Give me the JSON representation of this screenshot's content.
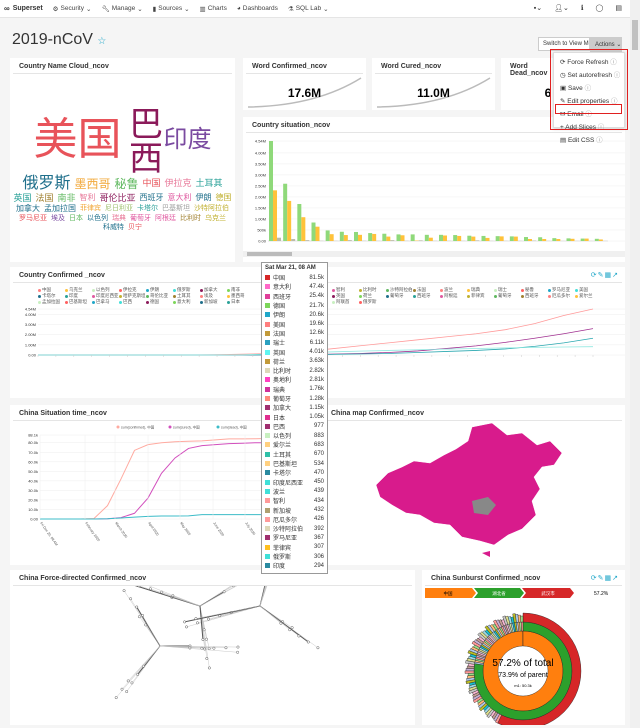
{
  "nav": {
    "brand": "Superset",
    "items": [
      {
        "label": "Security",
        "icon": "cogs-icon"
      },
      {
        "label": "Manage",
        "icon": "wrench-icon"
      },
      {
        "label": "Sources",
        "icon": "database-icon"
      },
      {
        "label": "Charts",
        "icon": "bar-chart-icon"
      },
      {
        "label": "Dashboards",
        "icon": "dashboard-icon"
      },
      {
        "label": "SQL Lab",
        "icon": "flask-icon"
      }
    ]
  },
  "dashboard": {
    "title": "2019-nCoV",
    "switch_label": "Switch to View Mode",
    "actions_label": "Actions"
  },
  "actions_menu": [
    {
      "label": "Force Refresh",
      "icon": "refresh-icon"
    },
    {
      "label": "Set autorefresh",
      "icon": "clock-icon"
    },
    {
      "label": "Save",
      "icon": "save-icon"
    },
    {
      "label": "Edit properties",
      "icon": "edit-icon"
    },
    {
      "label": "Email",
      "icon": "envelope-icon"
    },
    {
      "label": "Add Slices",
      "icon": "plus-icon"
    },
    {
      "label": "Edit CSS",
      "icon": "css-icon"
    }
  ],
  "panels": {
    "cloud": {
      "title": "Country Name Cloud_ncov",
      "words": [
        {
          "t": "美国",
          "c": "#e8535a",
          "s": 44
        },
        {
          "t": "巴西",
          "c": "#8b1a5a",
          "s": 34
        },
        {
          "t": "印度",
          "c": "#7a4aa0",
          "s": 24
        },
        {
          "t": "俄罗斯",
          "c": "#1f6f8b",
          "s": 16
        },
        {
          "t": "墨西哥",
          "c": "#f2a93b",
          "s": 12
        },
        {
          "t": "秘鲁",
          "c": "#5fb85f",
          "s": 12
        },
        {
          "t": "中国",
          "c": "#e8535a",
          "s": 9
        },
        {
          "t": "伊拉克",
          "c": "#e87a9a",
          "s": 9
        },
        {
          "t": "土耳其",
          "c": "#2aa198",
          "s": 9
        },
        {
          "t": "英国",
          "c": "#2aa198",
          "s": 9
        },
        {
          "t": "法国",
          "c": "#a08030",
          "s": 9
        },
        {
          "t": "南非",
          "c": "#5fb85f",
          "s": 9
        },
        {
          "t": "智利",
          "c": "#e87a9a",
          "s": 8
        },
        {
          "t": "哥伦比亚",
          "c": "#8b1a5a",
          "s": 9
        },
        {
          "t": "西班牙",
          "c": "#1f6f8b",
          "s": 8
        },
        {
          "t": "意大利",
          "c": "#e05aa0",
          "s": 8
        },
        {
          "t": "伊朗",
          "c": "#1f6f8b",
          "s": 8
        },
        {
          "t": "德国",
          "c": "#c0b030",
          "s": 8
        },
        {
          "t": "加拿大",
          "c": "#1f6f8b",
          "s": 8
        },
        {
          "t": "孟加拉国",
          "c": "#1f6f8b",
          "s": 8
        },
        {
          "t": "菲律宾",
          "c": "#f2a93b",
          "s": 7
        },
        {
          "t": "尼日利亚",
          "c": "#a0c070",
          "s": 7
        },
        {
          "t": "卡塔尔",
          "c": "#2aa198",
          "s": 7
        },
        {
          "t": "巴基斯坦",
          "c": "#a0a0a0",
          "s": 7
        },
        {
          "t": "沙特阿拉伯",
          "c": "#c0b030",
          "s": 7
        },
        {
          "t": "罗马尼亚",
          "c": "#e8535a",
          "s": 7
        },
        {
          "t": "埃及",
          "c": "#7a4aa0",
          "s": 7
        },
        {
          "t": "日本",
          "c": "#5fb85f",
          "s": 7
        },
        {
          "t": "以色列",
          "c": "#1f6f8b",
          "s": 7
        },
        {
          "t": "瑞典",
          "c": "#e87a9a",
          "s": 7
        },
        {
          "t": "葡萄牙",
          "c": "#e05aa0",
          "s": 7
        },
        {
          "t": "阿根廷",
          "c": "#e05aa0",
          "s": 7
        },
        {
          "t": "比利时",
          "c": "#a08030",
          "s": 7
        },
        {
          "t": "乌克兰",
          "c": "#c0b030",
          "s": 7
        },
        {
          "t": "科威特",
          "c": "#1f6f8b",
          "s": 7
        },
        {
          "t": "贝宁",
          "c": "#e8535a",
          "s": 7
        }
      ]
    },
    "confirmed": {
      "title": "Word Confirmed_ncov",
      "value": "17.6M"
    },
    "cured": {
      "title": "Word Cured_ncov",
      "value": "11.0M"
    },
    "dead": {
      "title": "Word Dead_ncov",
      "value": "6"
    },
    "situation": {
      "title": "Country situation_ncov"
    },
    "country_confirmed": {
      "title": "Country Confirmed _ncov"
    },
    "china_time": {
      "title": "China Situation time_ncov"
    },
    "china_map": {
      "title": "China map Confirmed_ncov"
    },
    "force": {
      "title": "China Force-directed Confirmed_ncov"
    },
    "sunburst": {
      "title": "China Sunburst Confirmed_ncov",
      "breadcrumb": [
        "中国",
        "湖北省",
        "武汉市"
      ],
      "pct": "57.2%",
      "center1": "57.2% of total",
      "center2": "73.9% of parent",
      "center3": "m1: 50.3k"
    }
  },
  "tooltip": {
    "header": "Sat Mar 21, 08 AM",
    "rows": [
      {
        "n": "中国",
        "v": "81.5k",
        "c": "#d62728"
      },
      {
        "n": "意大利",
        "v": "47.4k",
        "c": "#ff69c8"
      },
      {
        "n": "西班牙",
        "v": "25.4k",
        "c": "#e0409a"
      },
      {
        "n": "德国",
        "v": "21.7k",
        "c": "#7cd65a"
      },
      {
        "n": "伊朗",
        "v": "20.6k",
        "c": "#20a7c9"
      },
      {
        "n": "美国",
        "v": "19.6k",
        "c": "#ff7f7f"
      },
      {
        "n": "法国",
        "v": "12.6k",
        "c": "#c29a3a"
      },
      {
        "n": "瑞士",
        "v": "6.11k",
        "c": "#2aa0c0"
      },
      {
        "n": "英国",
        "v": "4.01k",
        "c": "#5ff5f0"
      },
      {
        "n": "荷兰",
        "v": "3.63k",
        "c": "#c29a3a"
      },
      {
        "n": "比利时",
        "v": "2.82k",
        "c": "#ddd8b8"
      },
      {
        "n": "奥地利",
        "v": "2.81k",
        "c": "#ff40c0"
      },
      {
        "n": "瑞典",
        "v": "1.76k",
        "c": "#d0309a"
      },
      {
        "n": "葡萄牙",
        "v": "1.28k",
        "c": "#ff8a7a"
      },
      {
        "n": "加拿大",
        "v": "1.15k",
        "c": "#a03070"
      },
      {
        "n": "日本",
        "v": "1.05k",
        "c": "#e03090"
      },
      {
        "n": "巴西",
        "v": "977",
        "c": "#a03070"
      },
      {
        "n": "以色列",
        "v": "883",
        "c": "#c8f0c0"
      },
      {
        "n": "爱尔兰",
        "v": "683",
        "c": "#ffd080"
      },
      {
        "n": "土耳其",
        "v": "670",
        "c": "#30c0a8"
      },
      {
        "n": "巴基斯坦",
        "v": "534",
        "c": "#ffd080"
      },
      {
        "n": "卡塔尔",
        "v": "470",
        "c": "#2a8aa0"
      },
      {
        "n": "印度尼西亚",
        "v": "450",
        "c": "#40e0d8"
      },
      {
        "n": "波兰",
        "v": "439",
        "c": "#40e0d8"
      },
      {
        "n": "智利",
        "v": "434",
        "c": "#ff9a9a"
      },
      {
        "n": "新加坡",
        "v": "432",
        "c": "#b0a070"
      },
      {
        "n": "厄瓜多尔",
        "v": "426",
        "c": "#ff9a9a"
      },
      {
        "n": "沙特阿拉伯",
        "v": "392",
        "c": "#ddd8b8"
      },
      {
        "n": "罗马尼亚",
        "v": "367",
        "c": "#a03070"
      },
      {
        "n": "菲律宾",
        "v": "307",
        "c": "#ffc020"
      },
      {
        "n": "俄罗斯",
        "v": "306",
        "c": "#40e0d8"
      },
      {
        "n": "印度",
        "v": "294",
        "c": "#2a8aa0"
      }
    ]
  },
  "legend_countries": [
    "中国",
    "乌克兰",
    "以色列",
    "伊拉克",
    "伊朗",
    "俄罗斯",
    "加拿大",
    "南非",
    "卡塔尔",
    "印度",
    "印度尼西亚",
    "哈萨克斯坦",
    "哥伦比亚",
    "土耳其",
    "埃及",
    "墨西哥",
    "孟加拉国",
    "巴基斯坦",
    "巴拿马",
    "巴西",
    "德国",
    "意大利",
    "新加坡",
    "日本",
    "智利",
    "比利时",
    "沙特阿拉伯",
    "法国",
    "波兰",
    "瑞典",
    "瑞士",
    "秘鲁",
    "罗马尼亚",
    "美国",
    "英国",
    "荷兰",
    "葡萄牙",
    "西班牙",
    "阿根廷",
    "菲律宾",
    "葡萄牙",
    "西班牙",
    "厄瓜多尔",
    "爱尔兰",
    "阿联酋",
    "俄罗斯"
  ],
  "chart_data": [
    {
      "type": "bar",
      "title": "Country situation_ncov",
      "yticks": [
        "0.00",
        "500k",
        "1.00M",
        "1.50M",
        "2.00M",
        "2.50M",
        "3.00M",
        "3.50M",
        "4.00M",
        "4.54M"
      ],
      "ylim": [
        0,
        4540000
      ],
      "series": [
        {
          "color": "#8fd97a",
          "values": [
            4540000,
            2600000,
            1680000,
            840000,
            480000,
            420000,
            410000,
            360000,
            330000,
            300000,
            300000,
            280000,
            280000,
            270000,
            240000,
            230000,
            220000,
            210000,
            180000,
            170000,
            130000,
            120000,
            110000,
            100000
          ]
        },
        {
          "color": "#ffc23a",
          "values": [
            2300000,
            1820000,
            1080000,
            650000,
            310000,
            270000,
            280000,
            320000,
            200000,
            260000,
            20000,
            150000,
            250000,
            230000,
            200000,
            140000,
            210000,
            200000,
            90000,
            90000,
            90000,
            100000,
            110000,
            70000
          ]
        },
        {
          "color": "#bbbbaa",
          "values": [
            150000,
            90000,
            40000,
            10000,
            8000,
            40000,
            10000,
            8000,
            40000,
            10000,
            30000,
            8000,
            8000,
            8000,
            30000,
            6000,
            8000,
            6000,
            20000,
            5000,
            3000,
            4000,
            3000,
            4000
          ]
        }
      ]
    },
    {
      "type": "line",
      "title": "Country Confirmed _ncov",
      "yticks": [
        "0.00",
        "1.00M",
        "2.00M",
        "3.00M",
        "4.00M",
        "4.54M"
      ],
      "ylim": [
        0,
        4540000
      ],
      "series": [
        {
          "color": "#ff9a9a",
          "values": [
            0,
            0,
            0,
            0,
            0,
            0,
            20000,
            80000,
            150000,
            300000,
            600000,
            900000,
            1200000,
            1500000,
            1800000,
            2100000,
            2500000,
            3100000,
            3900000,
            4540000
          ]
        },
        {
          "color": "#a03090",
          "values": [
            0,
            0,
            0,
            0,
            0,
            0,
            0,
            5000,
            10000,
            30000,
            80000,
            150000,
            250000,
            400000,
            650000,
            900000,
            1250000,
            1650000,
            2100000,
            2600000
          ]
        },
        {
          "color": "#2aa8b0",
          "values": [
            0,
            0,
            0,
            0,
            0,
            0,
            0,
            3000,
            10000,
            30000,
            60000,
            100000,
            150000,
            250000,
            350000,
            450000,
            600000,
            850000,
            1200000,
            1650000
          ]
        },
        {
          "color": "#90e8e0",
          "values": [
            0,
            0,
            0,
            0,
            0,
            0,
            3000,
            20000,
            100000,
            200000,
            300000,
            380000,
            450000,
            520000,
            580000,
            640000,
            700000,
            750000,
            790000,
            820000
          ]
        }
      ]
    },
    {
      "type": "line",
      "title": "China Situation time_ncov",
      "legend": [
        "sum(confirmed), 中国",
        "sum(cured), 中国",
        "sum(dead), 中国"
      ],
      "yticks": [
        "0.00",
        "10.0k",
        "20.0k",
        "30.0k",
        "40.0k",
        "50.0k",
        "60.0k",
        "70.0k",
        "80.0k",
        "88.1k"
      ],
      "ylim": [
        0,
        88100
      ],
      "xticks": [
        "Fri Dec 20, 08 AM",
        "February 2020",
        "March 2020",
        "April 2020",
        "May 2020",
        "June 2020",
        "July 2020"
      ],
      "series": [
        {
          "name": "sum(confirmed), 中国",
          "color": "#ffaaa0",
          "values": [
            0,
            0,
            0,
            0,
            500,
            14000,
            42000,
            72000,
            78000,
            80000,
            81000,
            81500,
            82000,
            83000,
            84000,
            84000,
            84200,
            84500,
            85000,
            86000,
            87000
          ]
        },
        {
          "name": "sum(cured), 中国",
          "color": "#d24fbd",
          "values": [
            0,
            0,
            0,
            0,
            0,
            200,
            1500,
            6000,
            22000,
            48000,
            64000,
            74000,
            77000,
            78000,
            79000,
            79500,
            80000,
            80000,
            80200,
            80500,
            81000
          ]
        },
        {
          "name": "sum(dead), 中国",
          "color": "#3cbcc8",
          "values": [
            0,
            0,
            0,
            0,
            0,
            300,
            1000,
            2000,
            2700,
            3100,
            3200,
            3300,
            4600,
            4600,
            4630,
            4630,
            4640,
            4640,
            4650,
            4650,
            4660
          ]
        }
      ]
    }
  ],
  "colors": {
    "accent": "#20a7c9",
    "highlight": "#e02020",
    "map": "#d81b8c"
  }
}
